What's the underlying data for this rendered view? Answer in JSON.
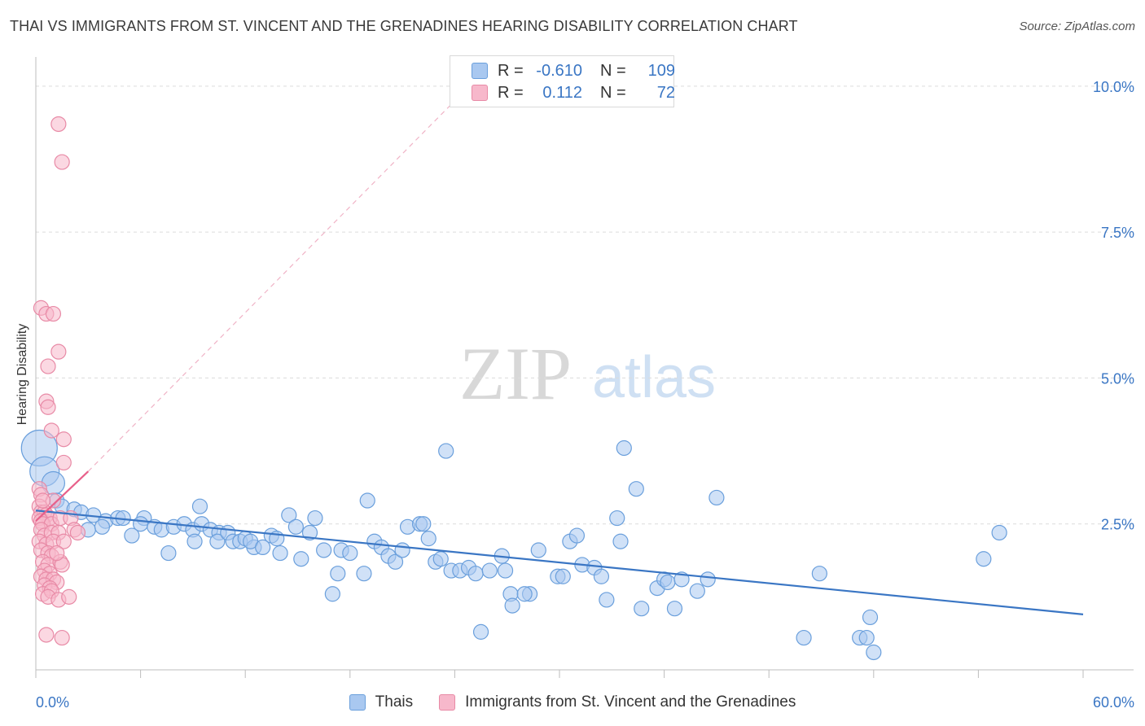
{
  "title": "THAI VS IMMIGRANTS FROM ST. VINCENT AND THE GRENADINES HEARING DISABILITY CORRELATION CHART",
  "source": "Source: ZipAtlas.com",
  "watermark": {
    "zip": "ZIP",
    "atlas": "atlas"
  },
  "legend": {
    "rows": [
      {
        "r_label": "R =",
        "r_value": "-0.610",
        "n_label": "N =",
        "n_value": "109",
        "color": "#a9c8f0",
        "border": "#6a9fdc"
      },
      {
        "r_label": "R =",
        "r_value": "0.112",
        "n_label": "N =",
        "n_value": "72",
        "color": "#f7b8cb",
        "border": "#e88aa6"
      }
    ]
  },
  "bottom_legend": [
    {
      "label": "Thais",
      "color": "#a9c8f0",
      "border": "#6a9fdc"
    },
    {
      "label": "Immigrants from St. Vincent and the Grenadines",
      "color": "#f7b8cb",
      "border": "#e88aa6"
    }
  ],
  "chart_data": {
    "type": "scatter",
    "ylabel": "Hearing Disability",
    "xlim": [
      0,
      60
    ],
    "ylim": [
      0,
      10.5
    ],
    "x_tick_labels": {
      "min": "0.0%",
      "max": "60.0%"
    },
    "y_ticks": [
      {
        "value": 2.5,
        "label": "2.5%"
      },
      {
        "value": 5.0,
        "label": "5.0%"
      },
      {
        "value": 7.5,
        "label": "7.5%"
      },
      {
        "value": 10.0,
        "label": "10.0%"
      }
    ],
    "grid": "horizontal-dashed",
    "colors": {
      "blue": "#3a76c4",
      "blue_fill": "#a9c8f0",
      "pink": "#e8608a",
      "pink_fill": "#f7b8cb",
      "axis_label": "#3a76c4"
    },
    "series": [
      {
        "name": "Thais",
        "points": [
          [
            0.2,
            3.8
          ],
          [
            0.5,
            3.4
          ],
          [
            1.0,
            3.2
          ],
          [
            1.2,
            2.9
          ],
          [
            1.5,
            2.8
          ],
          [
            2.2,
            2.75
          ],
          [
            2.6,
            2.7
          ],
          [
            3.3,
            2.65
          ],
          [
            4.0,
            2.55
          ],
          [
            4.7,
            2.6
          ],
          [
            5.0,
            2.6
          ],
          [
            6.2,
            2.6
          ],
          [
            3.0,
            2.4
          ],
          [
            3.8,
            2.45
          ],
          [
            5.5,
            2.3
          ],
          [
            6.0,
            2.5
          ],
          [
            6.8,
            2.45
          ],
          [
            7.2,
            2.4
          ],
          [
            7.6,
            2.0
          ],
          [
            7.9,
            2.45
          ],
          [
            8.5,
            2.5
          ],
          [
            9.0,
            2.4
          ],
          [
            9.1,
            2.2
          ],
          [
            9.4,
            2.8
          ],
          [
            9.5,
            2.5
          ],
          [
            10.0,
            2.4
          ],
          [
            10.5,
            2.35
          ],
          [
            10.4,
            2.2
          ],
          [
            11.0,
            2.35
          ],
          [
            11.3,
            2.2
          ],
          [
            11.7,
            2.2
          ],
          [
            12.0,
            2.25
          ],
          [
            12.5,
            2.1
          ],
          [
            12.3,
            2.2
          ],
          [
            13.0,
            2.1
          ],
          [
            13.5,
            2.3
          ],
          [
            13.8,
            2.25
          ],
          [
            14.0,
            2.0
          ],
          [
            14.5,
            2.65
          ],
          [
            14.9,
            2.45
          ],
          [
            15.2,
            1.9
          ],
          [
            15.7,
            2.35
          ],
          [
            16.0,
            2.6
          ],
          [
            16.5,
            2.05
          ],
          [
            17.5,
            2.05
          ],
          [
            17.3,
            1.65
          ],
          [
            17.0,
            1.3
          ],
          [
            18.0,
            2.0
          ],
          [
            18.8,
            1.65
          ],
          [
            19.0,
            2.9
          ],
          [
            19.4,
            2.2
          ],
          [
            19.8,
            2.1
          ],
          [
            20.2,
            1.95
          ],
          [
            20.6,
            1.85
          ],
          [
            21.0,
            2.05
          ],
          [
            21.3,
            2.45
          ],
          [
            22.0,
            2.5
          ],
          [
            22.2,
            2.5
          ],
          [
            22.5,
            2.25
          ],
          [
            22.9,
            1.85
          ],
          [
            23.2,
            1.9
          ],
          [
            23.5,
            3.75
          ],
          [
            23.8,
            1.7
          ],
          [
            24.3,
            1.7
          ],
          [
            24.8,
            1.75
          ],
          [
            25.2,
            1.65
          ],
          [
            25.5,
            0.65
          ],
          [
            26.0,
            1.7
          ],
          [
            26.7,
            1.95
          ],
          [
            26.9,
            1.7
          ],
          [
            27.2,
            1.3
          ],
          [
            27.3,
            1.1
          ],
          [
            28.3,
            1.3
          ],
          [
            28.0,
            1.3
          ],
          [
            28.8,
            2.05
          ],
          [
            29.9,
            1.6
          ],
          [
            30.2,
            1.6
          ],
          [
            30.6,
            2.2
          ],
          [
            31.0,
            2.3
          ],
          [
            31.3,
            1.8
          ],
          [
            32.0,
            1.75
          ],
          [
            32.4,
            1.6
          ],
          [
            32.7,
            1.2
          ],
          [
            33.3,
            2.6
          ],
          [
            33.5,
            2.2
          ],
          [
            33.7,
            3.8
          ],
          [
            34.4,
            3.1
          ],
          [
            34.7,
            1.05
          ],
          [
            35.6,
            1.4
          ],
          [
            36.0,
            1.55
          ],
          [
            36.2,
            1.5
          ],
          [
            36.6,
            1.05
          ],
          [
            37.0,
            1.55
          ],
          [
            37.9,
            1.35
          ],
          [
            38.5,
            1.55
          ],
          [
            39.0,
            2.95
          ],
          [
            44.0,
            0.55
          ],
          [
            44.9,
            1.65
          ],
          [
            47.2,
            0.55
          ],
          [
            47.6,
            0.55
          ],
          [
            47.8,
            0.9
          ],
          [
            48.0,
            0.3
          ],
          [
            54.3,
            1.9
          ],
          [
            55.2,
            2.35
          ]
        ],
        "sizes": {
          "0": 22,
          "1": 18,
          "2": 14
        }
      },
      {
        "name": "Immigrants from St. Vincent and the Grenadines",
        "points": [
          [
            1.3,
            9.35
          ],
          [
            1.5,
            8.7
          ],
          [
            0.3,
            6.2
          ],
          [
            0.6,
            6.1
          ],
          [
            1.0,
            6.1
          ],
          [
            1.3,
            5.45
          ],
          [
            0.7,
            5.2
          ],
          [
            0.6,
            4.6
          ],
          [
            0.7,
            4.5
          ],
          [
            0.9,
            4.1
          ],
          [
            1.6,
            3.95
          ],
          [
            1.6,
            3.55
          ],
          [
            0.2,
            3.1
          ],
          [
            0.3,
            3.0
          ],
          [
            1.0,
            2.9
          ],
          [
            0.2,
            2.8
          ],
          [
            0.3,
            2.7
          ],
          [
            0.5,
            2.7
          ],
          [
            0.6,
            2.65
          ],
          [
            0.8,
            2.6
          ],
          [
            0.2,
            2.6
          ],
          [
            0.3,
            2.55
          ],
          [
            0.4,
            2.5
          ],
          [
            0.9,
            2.5
          ],
          [
            1.4,
            2.6
          ],
          [
            2.0,
            2.6
          ],
          [
            0.3,
            2.4
          ],
          [
            0.5,
            2.3
          ],
          [
            0.9,
            2.35
          ],
          [
            1.3,
            2.35
          ],
          [
            2.2,
            2.4
          ],
          [
            0.2,
            2.2
          ],
          [
            0.6,
            2.15
          ],
          [
            1.0,
            2.2
          ],
          [
            1.6,
            2.2
          ],
          [
            2.4,
            2.35
          ],
          [
            0.3,
            2.05
          ],
          [
            0.7,
            2.0
          ],
          [
            0.9,
            1.95
          ],
          [
            0.4,
            1.85
          ],
          [
            0.7,
            1.8
          ],
          [
            1.4,
            1.85
          ],
          [
            0.5,
            1.7
          ],
          [
            0.8,
            1.65
          ],
          [
            1.5,
            1.8
          ],
          [
            0.3,
            1.6
          ],
          [
            0.6,
            1.55
          ],
          [
            1.0,
            1.55
          ],
          [
            1.2,
            1.5
          ],
          [
            0.5,
            1.45
          ],
          [
            0.8,
            1.4
          ],
          [
            0.4,
            1.3
          ],
          [
            0.9,
            1.35
          ],
          [
            0.7,
            1.25
          ],
          [
            1.3,
            1.2
          ],
          [
            1.9,
            1.25
          ],
          [
            0.6,
            0.6
          ],
          [
            1.5,
            0.55
          ],
          [
            0.4,
            2.9
          ],
          [
            1.2,
            2.0
          ]
        ]
      }
    ],
    "trend_lines": [
      {
        "series": "Thais",
        "style": "solid",
        "x": [
          0,
          60
        ],
        "y": [
          2.73,
          0.95
        ]
      },
      {
        "series": "Immigrants from St. Vincent and the Grenadines",
        "style": "solid",
        "x": [
          0,
          3
        ],
        "y": [
          2.55,
          3.4
        ]
      },
      {
        "series": "Immigrants from St. Vincent and the Grenadines",
        "style": "dashed",
        "x": [
          3,
          24.5
        ],
        "y": [
          3.4,
          9.9
        ]
      }
    ]
  }
}
